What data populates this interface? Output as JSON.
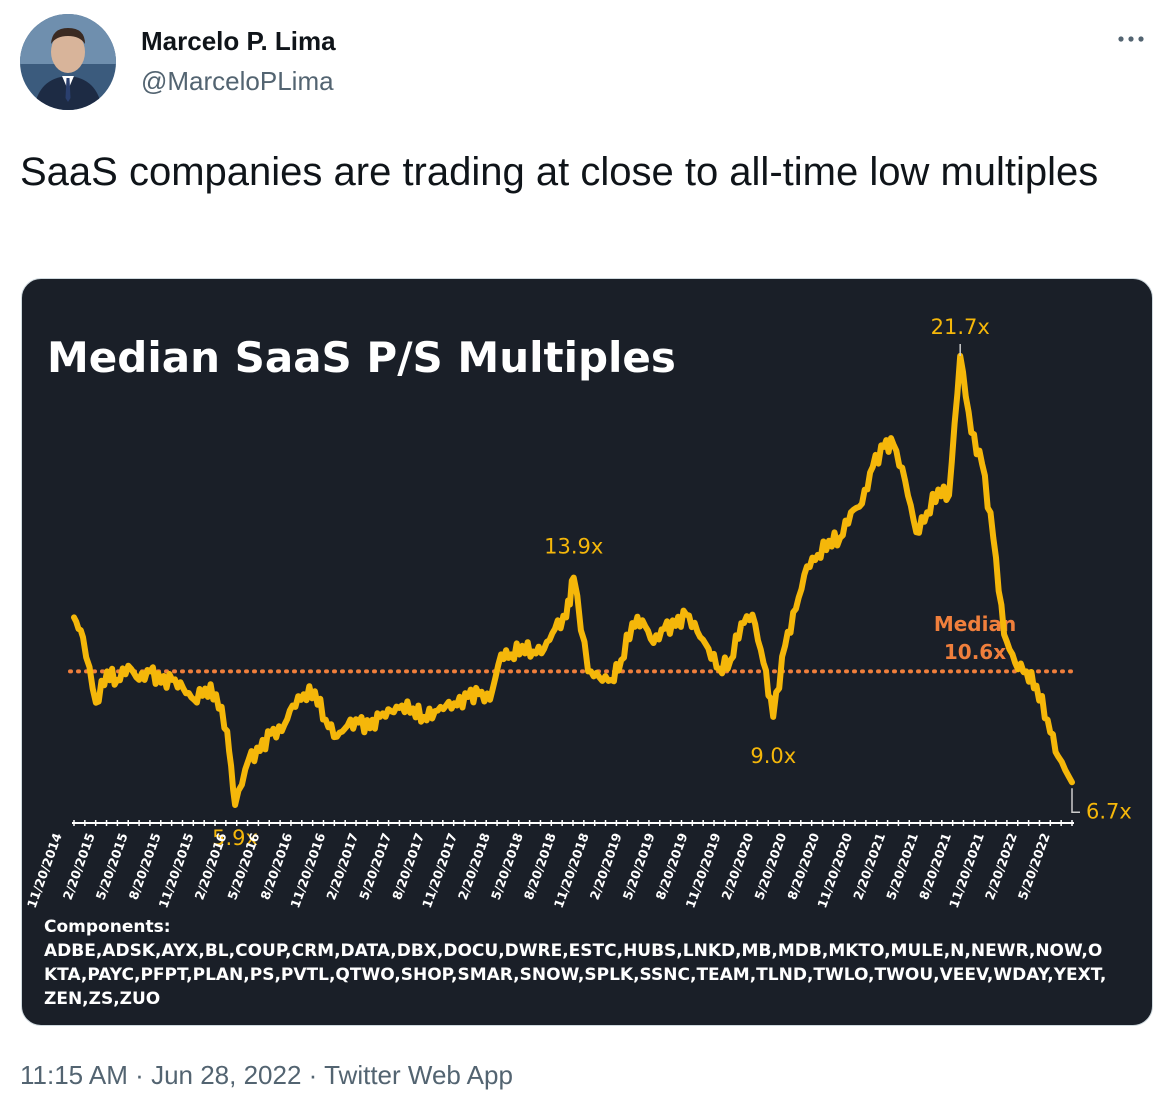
{
  "author": {
    "name": "Marcelo P. Lima",
    "handle": "@MarceloPLima"
  },
  "tweet": {
    "text": "SaaS companies are trading at close to all-time low multiples"
  },
  "footer": {
    "time": "11:15 AM",
    "date": "Jun 28, 2022",
    "source": "Twitter Web App",
    "separator": "·"
  },
  "icons": {
    "more": "more-horizontal-icon",
    "avatar": "profile-photo"
  },
  "colors": {
    "line": "#f5b70a",
    "median": "#f07f3c",
    "chart_bg": "#1a1f28",
    "text_muted": "#536471"
  },
  "chart_data": {
    "type": "line",
    "title": "Median SaaS P/S Multiples",
    "xlabel": "",
    "ylabel": "",
    "ylim": [
      4,
      23
    ],
    "x_tick_labels": [
      "11/20/2014",
      "2/20/2015",
      "5/20/2015",
      "8/20/2015",
      "11/20/2015",
      "2/20/2016",
      "5/20/2016",
      "8/20/2016",
      "11/20/2016",
      "2/20/2017",
      "5/20/2017",
      "8/20/2017",
      "11/20/2017",
      "2/20/2018",
      "5/20/2018",
      "8/20/2018",
      "11/20/2018",
      "2/20/2019",
      "5/20/2019",
      "8/20/2019",
      "11/20/2019",
      "2/20/2020",
      "5/20/2020",
      "8/20/2020",
      "11/20/2020",
      "2/20/2021",
      "5/20/2021",
      "8/20/2021",
      "11/20/2021",
      "2/20/2022",
      "5/20/2022"
    ],
    "series": [
      {
        "x": [
          "2014-11-20",
          "2014-12-15",
          "2015-01-20",
          "2015-02-20",
          "2015-03-20",
          "2015-04-20",
          "2015-05-20",
          "2015-06-20",
          "2015-07-20",
          "2015-08-20",
          "2015-09-20",
          "2015-10-20",
          "2015-11-20",
          "2015-12-20",
          "2016-01-20",
          "2016-02-11",
          "2016-03-20",
          "2016-04-20",
          "2016-05-20",
          "2016-06-20",
          "2016-07-20",
          "2016-08-20",
          "2016-09-20",
          "2016-10-20",
          "2016-11-20",
          "2016-12-20",
          "2017-01-20",
          "2017-02-20",
          "2017-03-20",
          "2017-04-20",
          "2017-05-20",
          "2017-06-20",
          "2017-07-20",
          "2017-08-20",
          "2017-09-20",
          "2017-10-20",
          "2017-11-20",
          "2017-12-20",
          "2018-01-20",
          "2018-02-20",
          "2018-03-20",
          "2018-04-20",
          "2018-05-20",
          "2018-06-20",
          "2018-07-20",
          "2018-08-20",
          "2018-09-10",
          "2018-10-20",
          "2018-11-20",
          "2018-12-24",
          "2019-01-20",
          "2019-02-20",
          "2019-03-20",
          "2019-04-20",
          "2019-05-20",
          "2019-06-20",
          "2019-07-20",
          "2019-08-20",
          "2019-09-20",
          "2019-10-20",
          "2019-11-20",
          "2019-12-20",
          "2020-01-20",
          "2020-02-20",
          "2020-03-18",
          "2020-04-20",
          "2020-05-20",
          "2020-06-20",
          "2020-07-20",
          "2020-08-20",
          "2020-09-20",
          "2020-10-20",
          "2020-11-20",
          "2020-12-20",
          "2021-01-20",
          "2021-02-15",
          "2021-03-20",
          "2021-04-20",
          "2021-05-20",
          "2021-06-20",
          "2021-07-20",
          "2021-08-20",
          "2021-09-20",
          "2021-10-20",
          "2021-11-20",
          "2021-12-20",
          "2022-01-20",
          "2022-02-20",
          "2022-03-20",
          "2022-04-20",
          "2022-05-20",
          "2022-06-27"
        ],
        "values": [
          12.5,
          11.8,
          9.5,
          10.6,
          10.3,
          10.8,
          10.3,
          10.6,
          10.2,
          10.3,
          10.0,
          9.6,
          10.0,
          9.8,
          8.5,
          5.9,
          7.5,
          7.8,
          8.4,
          8.5,
          9.4,
          9.8,
          9.9,
          8.9,
          8.3,
          8.7,
          8.8,
          8.6,
          9.0,
          9.2,
          9.4,
          9.3,
          9.0,
          9.2,
          9.4,
          9.4,
          9.7,
          9.8,
          9.6,
          11.2,
          11.2,
          11.5,
          11.3,
          11.4,
          12.1,
          12.5,
          13.9,
          10.6,
          10.4,
          10.3,
          11.0,
          12.3,
          12.4,
          11.6,
          12.1,
          12.2,
          12.6,
          12.0,
          11.4,
          10.7,
          11.0,
          12.3,
          12.6,
          10.9,
          9.0,
          11.5,
          12.8,
          14.3,
          14.7,
          15.2,
          15.3,
          16.2,
          16.5,
          17.8,
          18.5,
          18.6,
          17.3,
          15.5,
          16.2,
          17.0,
          16.8,
          21.7,
          19.0,
          17.9,
          15.3,
          11.9,
          10.9,
          10.6,
          10.1,
          8.9,
          7.6,
          6.7
        ]
      }
    ],
    "median": 10.6,
    "median_label": "Median",
    "median_value_label": "10.6x",
    "annotations": [
      {
        "label": "5.9x",
        "x": "2016-02-11",
        "y": 5.9
      },
      {
        "label": "13.9x",
        "x": "2018-09-10",
        "y": 13.9
      },
      {
        "label": "9.0x",
        "x": "2020-03-18",
        "y": 9.0
      },
      {
        "label": "21.7x",
        "x": "2021-08-20",
        "y": 21.7
      },
      {
        "label": "6.7x",
        "x": "2022-06-27",
        "y": 6.7
      }
    ],
    "components_title": "Components:",
    "components": "ADBE,ADSK,AYX,BL,COUP,CRM,DATA,DBX,DOCU,DWRE,ESTC,HUBS,LNKD,MB,MDB,MKTO,MULE,N,NEWR,NOW,OKTA,PAYC,PFPT,PLAN,PS,PVTL,QTWO,SHOP,SMAR,SNOW,SPLK,SSNC,TEAM,TLND,TWLO,TWOU,VEEV,WDAY,YEXT,ZEN,ZS,ZUO"
  }
}
